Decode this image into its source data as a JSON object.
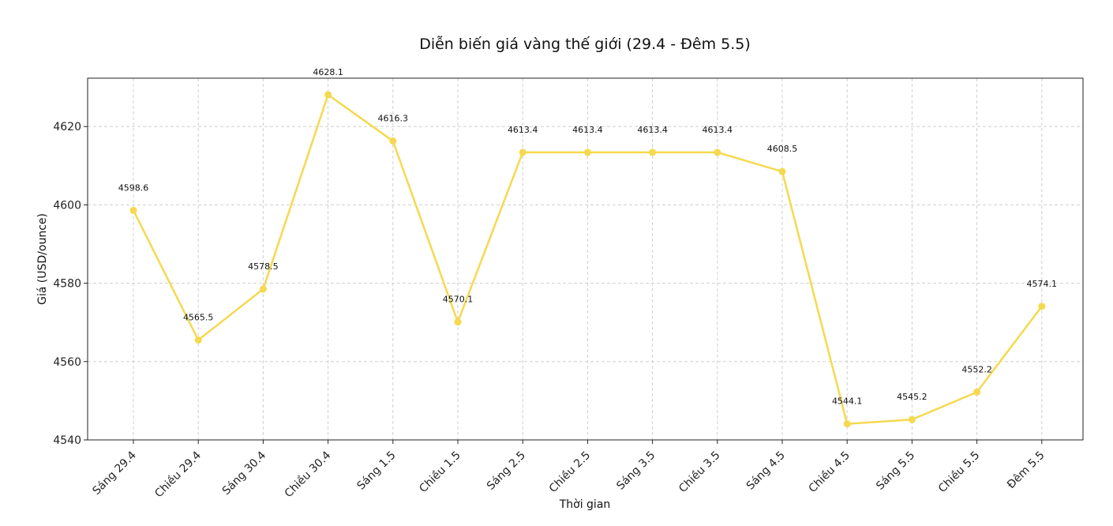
{
  "chart_data": {
    "type": "line",
    "title": "Diễn biến giá vàng thế giới (29.4 - Đêm 5.5)",
    "xlabel": "Thời gian",
    "ylabel": "Giá (USD/ounce)",
    "categories": [
      "Sáng 29.4",
      "Chiều 29.4",
      "Sáng 30.4",
      "Chiều 30.4",
      "Sáng 1.5",
      "Chiều 1.5",
      "Sáng 2.5",
      "Chiều 2.5",
      "Sáng 3.5",
      "Chiều 3.5",
      "Sáng 4.5",
      "Chiều 4.5",
      "Sáng 5.5",
      "Chiều 5.5",
      "Đêm 5.5"
    ],
    "series": [
      {
        "values": [
          4598.6,
          4565.5,
          4578.5,
          4628.1,
          4616.3,
          4570.1,
          4613.4,
          4613.4,
          4613.4,
          4613.4,
          4608.5,
          4544.1,
          4545.2,
          4552.2,
          4574.1
        ]
      }
    ],
    "data_labels": [
      "4598.6",
      "4565.5",
      "4578.5",
      "4628.1",
      "4616.3",
      "4570.1",
      "4613.4",
      "4613.4",
      "4613.4",
      "4613.4",
      "4608.5",
      "4544.1",
      "4545.2",
      "4552.2",
      "4574.1"
    ],
    "yticks": [
      4540,
      4560,
      4580,
      4600,
      4620
    ],
    "ylim": [
      4540,
      4632
    ],
    "grid": true,
    "line_color": "#f5d94e"
  }
}
